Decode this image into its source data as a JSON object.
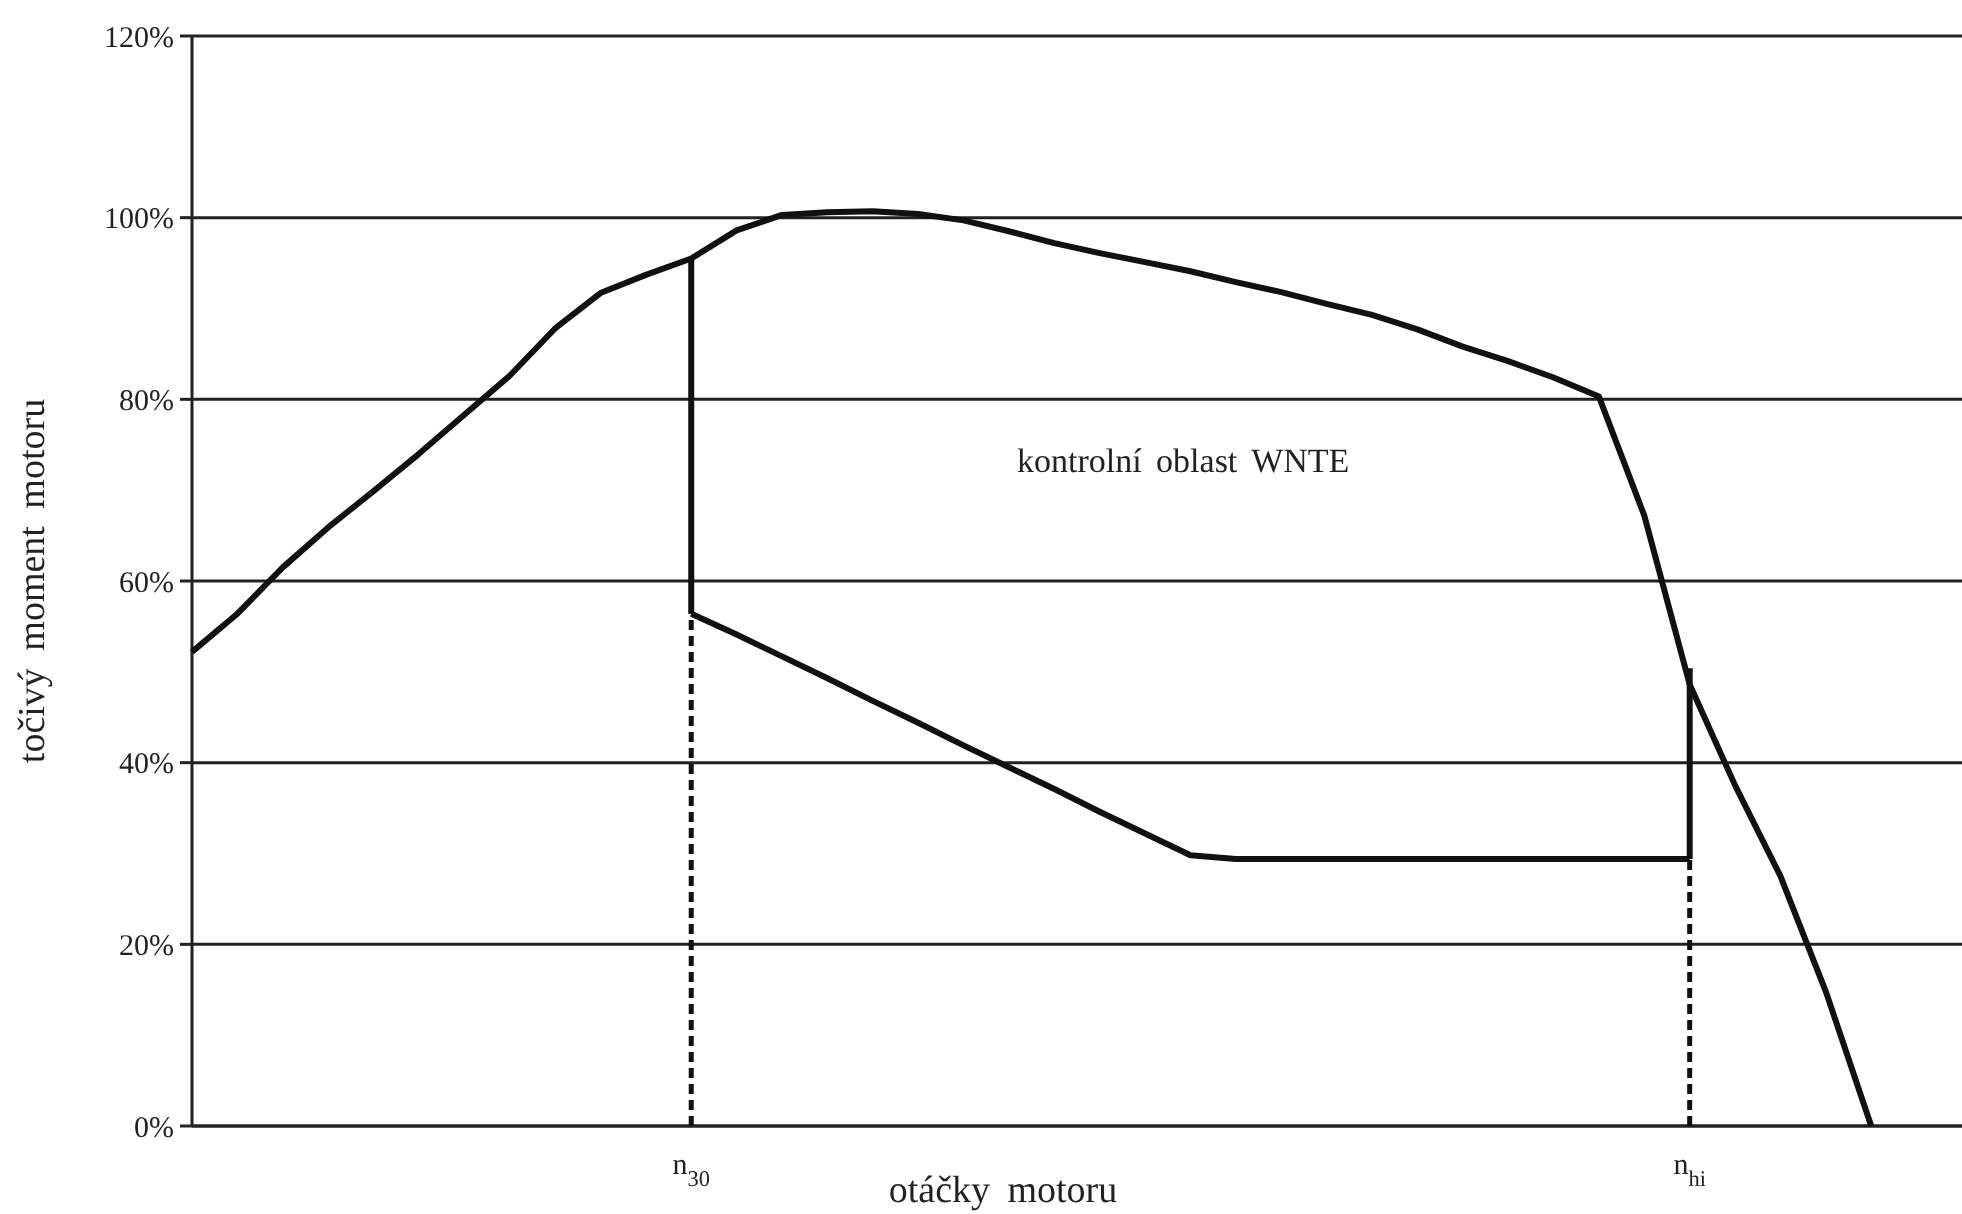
{
  "chart_data": {
    "type": "line",
    "xlabel": "otáčky motoru",
    "ylabel": "točivý moment motoru",
    "categories": [
      null,
      null,
      null,
      null,
      null,
      null,
      null,
      null,
      null,
      null,
      null,
      "n$_{30}$",
      null,
      null,
      null,
      null,
      null,
      null,
      null,
      null,
      null,
      null,
      null,
      null,
      null,
      null,
      null,
      null,
      null,
      null,
      null,
      null,
      null,
      "n$_{hi}$",
      null,
      null,
      null,
      null,
      null,
      null
    ],
    "ylim": [
      0,
      120
    ],
    "yticks": [
      {
        "value": 0,
        "label": "0%"
      },
      {
        "value": 20,
        "label": "20%"
      },
      {
        "value": 40,
        "label": "40%"
      },
      {
        "value": 60,
        "label": "60%"
      },
      {
        "value": 80,
        "label": "80%"
      },
      {
        "value": 100,
        "label": "100%"
      },
      {
        "value": 120,
        "label": "120%"
      }
    ],
    "grid": "y",
    "series": [
      {
        "color": "#111111",
        "line_style": "solid",
        "values": [
          52.2,
          56.4,
          61.5,
          65.9,
          69.9,
          74.0,
          78.3,
          82.6,
          87.8,
          91.7,
          93.7,
          95.5,
          98.6,
          100.3,
          100.6,
          100.7,
          100.4,
          99.7,
          98.5,
          97.2,
          96.1,
          95.1,
          94.1,
          92.9,
          91.8,
          90.5,
          89.3,
          87.7,
          85.8,
          84.2,
          82.4,
          80.3,
          67.2,
          48.6,
          37.5,
          27.5,
          14.8,
          0,
          null,
          null
        ]
      },
      {
        "color": "#111111",
        "line_style": "solid",
        "values": [
          null,
          null,
          null,
          null,
          null,
          null,
          null,
          null,
          null,
          null,
          null,
          56.4,
          54.1,
          51.7,
          49.3,
          46.8,
          44.4,
          41.9,
          39.5,
          37.1,
          34.6,
          32.2,
          29.8,
          29.4,
          29.4,
          29.4,
          29.4,
          29.4,
          29.4,
          29.4,
          29.4,
          29.4,
          29.4,
          29.4,
          null,
          null,
          null,
          null,
          null,
          null
        ]
      },
      {
        "color": "#111111",
        "line_style": "solid",
        "x": [
          "n$_{30}$",
          "n$_{30}$"
        ],
        "values": [
          56.4,
          95.5
        ]
      },
      {
        "color": "#111111",
        "line_style": "solid",
        "x": [
          "n$_{hi}$",
          "n$_{hi}$"
        ],
        "values": [
          29.4,
          50.4
        ]
      },
      {
        "color": "#111111",
        "line_style": "dashed",
        "x": [
          "n$_{30}$",
          "n$_{30}$"
        ],
        "values": [
          0,
          56.4
        ]
      },
      {
        "color": "#111111",
        "line_style": "dashed",
        "x": [
          "n$_{hi}$",
          "n$_{hi}$"
        ],
        "values": [
          0,
          29.4
        ]
      }
    ],
    "annotations": [
      "kontrolní oblast WNTE"
    ]
  }
}
